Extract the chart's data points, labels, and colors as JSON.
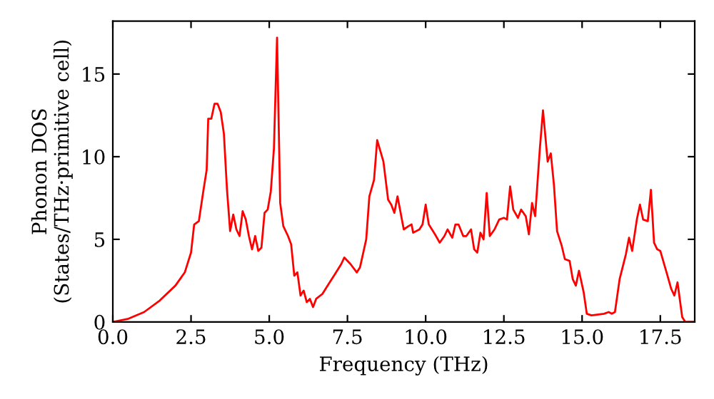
{
  "chart_data": {
    "type": "line",
    "xlabel": "Frequency (THz)",
    "ylabel": "Phonon DOS\n(States/THz·primitive cell)",
    "xlim": [
      0,
      18.6
    ],
    "ylim": [
      0,
      18.2
    ],
    "xticks": [
      {
        "value": 0,
        "label": "0.0"
      },
      {
        "value": 2.5,
        "label": "2.5"
      },
      {
        "value": 5,
        "label": "5.0"
      },
      {
        "value": 7.5,
        "label": "7.5"
      },
      {
        "value": 10,
        "label": "10.0"
      },
      {
        "value": 12.5,
        "label": "12.5"
      },
      {
        "value": 15,
        "label": "15.0"
      },
      {
        "value": 17.5,
        "label": "17.5"
      }
    ],
    "yticks": [
      0,
      5,
      10,
      15
    ],
    "grid": false,
    "marker": "none",
    "line_style": "solid",
    "series": [
      {
        "color": "#ff0000",
        "x": [
          0,
          0.5,
          1.0,
          1.5,
          2.0,
          2.3,
          2.5,
          2.6,
          2.75,
          2.9,
          3.0,
          3.05,
          3.15,
          3.25,
          3.35,
          3.45,
          3.55,
          3.65,
          3.75,
          3.85,
          3.95,
          4.05,
          4.15,
          4.25,
          4.35,
          4.45,
          4.55,
          4.65,
          4.75,
          4.85,
          4.95,
          5.05,
          5.15,
          5.25,
          5.35,
          5.45,
          5.6,
          5.7,
          5.8,
          5.9,
          6.0,
          6.1,
          6.2,
          6.3,
          6.4,
          6.5,
          6.7,
          6.9,
          7.1,
          7.3,
          7.4,
          7.6,
          7.8,
          7.9,
          8.1,
          8.2,
          8.35,
          8.45,
          8.65,
          8.8,
          8.9,
          9.0,
          9.1,
          9.3,
          9.45,
          9.55,
          9.6,
          9.8,
          9.9,
          10.0,
          10.1,
          10.3,
          10.45,
          10.6,
          10.7,
          10.85,
          10.95,
          11.05,
          11.2,
          11.3,
          11.45,
          11.55,
          11.65,
          11.75,
          11.85,
          11.95,
          12.05,
          12.2,
          12.35,
          12.5,
          12.6,
          12.7,
          12.8,
          12.95,
          13.05,
          13.2,
          13.3,
          13.4,
          13.5,
          13.65,
          13.75,
          13.9,
          14.0,
          14.1,
          14.2,
          14.35,
          14.45,
          14.6,
          14.7,
          14.8,
          14.9,
          15.05,
          15.15,
          15.3,
          15.7,
          15.85,
          15.95,
          16.05,
          16.2,
          16.4,
          16.5,
          16.6,
          16.75,
          16.85,
          16.95,
          17.1,
          17.2,
          17.3,
          17.4,
          17.5,
          17.7,
          17.85,
          17.95,
          18.05,
          18.2,
          18.3,
          18.6
        ],
        "values": [
          0,
          0.2,
          0.6,
          1.3,
          2.2,
          3.0,
          4.2,
          5.9,
          6.1,
          8,
          9.2,
          12.3,
          12.3,
          13.2,
          13.2,
          12.7,
          11.4,
          8,
          5.5,
          6.5,
          5.6,
          5.2,
          6.7,
          6.2,
          5.2,
          4.4,
          5.2,
          4.3,
          4.5,
          6.6,
          6.8,
          7.9,
          10.5,
          17.2,
          7.2,
          5.8,
          5.2,
          4.7,
          2.8,
          3.0,
          1.6,
          1.9,
          1.2,
          1.4,
          0.9,
          1.4,
          1.7,
          2.3,
          2.9,
          3.5,
          3.9,
          3.5,
          3.0,
          3.3,
          5.0,
          7.6,
          8.6,
          11.0,
          9.7,
          7.4,
          7.1,
          6.6,
          7.6,
          5.6,
          5.8,
          5.9,
          5.4,
          5.6,
          5.9,
          7.1,
          5.9,
          5.3,
          4.8,
          5.2,
          5.6,
          5.1,
          5.9,
          5.9,
          5.2,
          5.2,
          5.6,
          4.4,
          4.2,
          5.4,
          5.0,
          7.8,
          5.2,
          5.6,
          6.2,
          6.3,
          6.2,
          8.2,
          6.8,
          6.3,
          6.8,
          6.4,
          5.3,
          7.2,
          6.4,
          10.5,
          12.8,
          9.7,
          10.2,
          8.3,
          5.5,
          4.6,
          3.8,
          3.7,
          2.6,
          2.2,
          3.1,
          1.8,
          0.5,
          0.4,
          0.5,
          0.6,
          0.5,
          0.6,
          2.6,
          4.1,
          5.1,
          4.3,
          6.2,
          7.1,
          6.2,
          6.1,
          8.0,
          4.8,
          4.4,
          4.3,
          3.0,
          2.0,
          1.6,
          2.4,
          0.3,
          0.0,
          0.0
        ]
      }
    ]
  }
}
